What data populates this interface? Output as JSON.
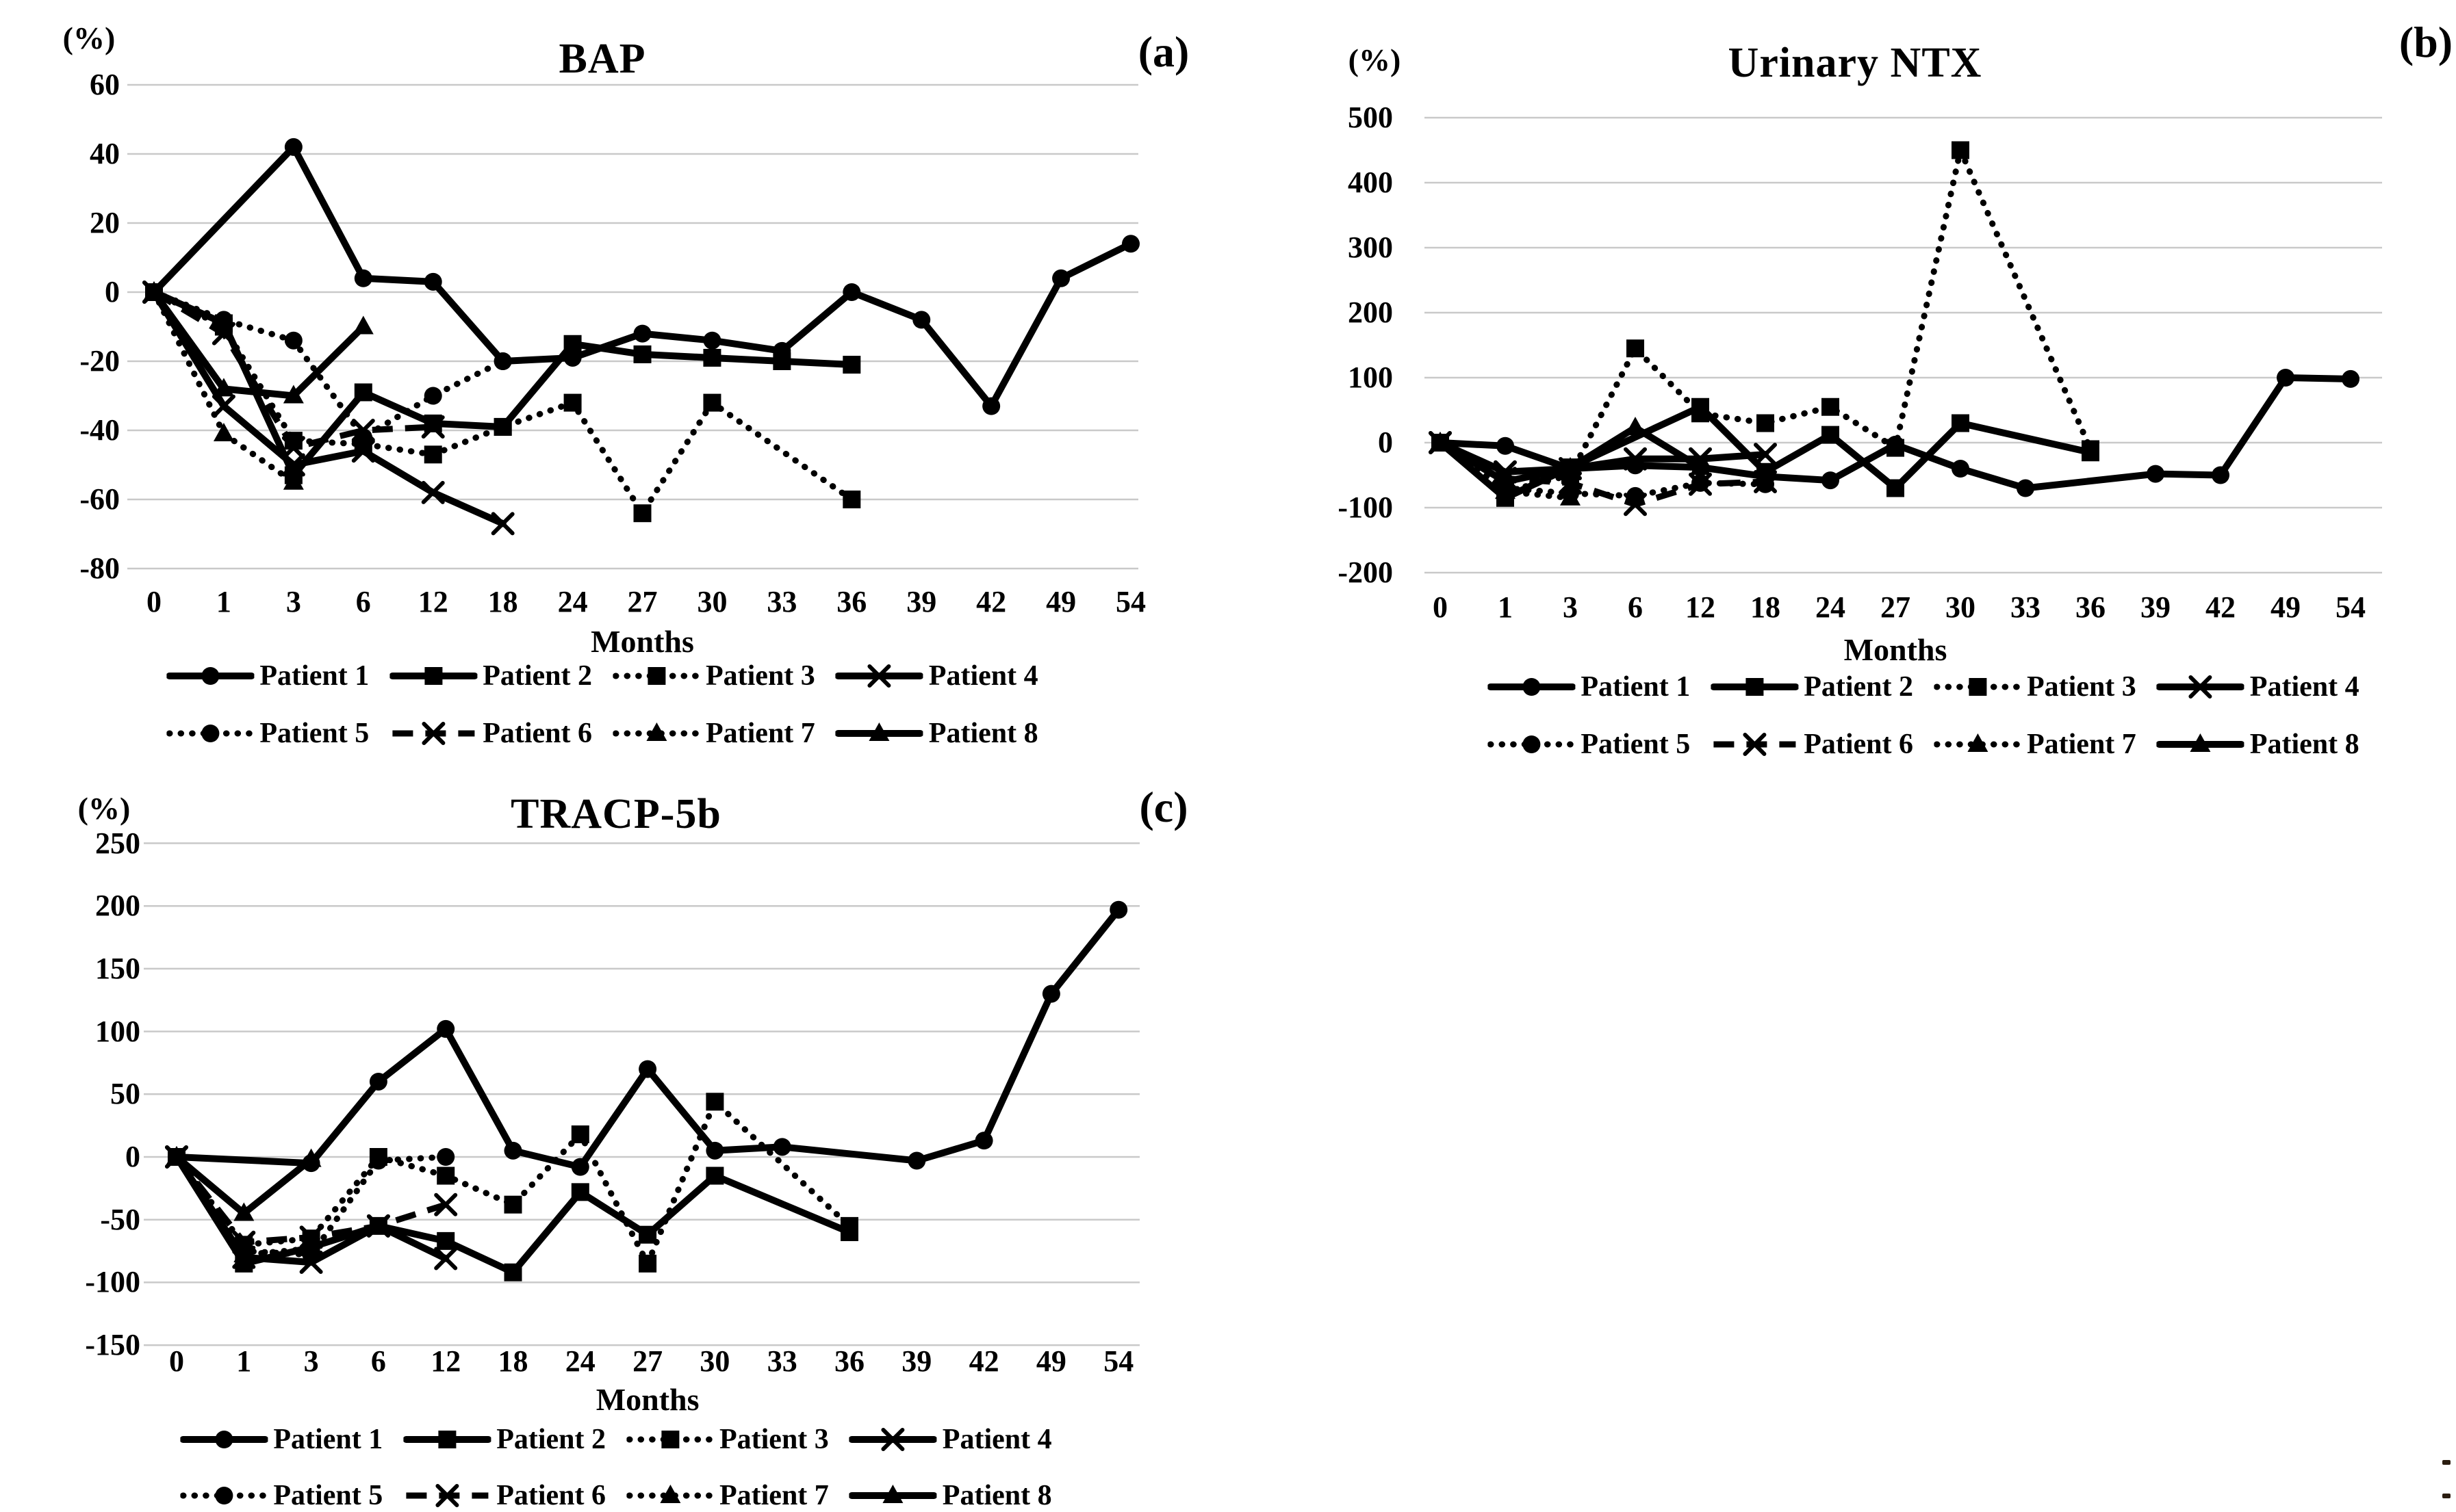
{
  "figure": {
    "background": "#ffffff",
    "axis_color": "#000000",
    "gridline_color": "#c9c9c9"
  },
  "chart_data": [
    {
      "type": "line",
      "panel": "(a)",
      "title": "BAP",
      "unit": "(%)",
      "xlabel": "Months",
      "grid": "horizontal",
      "legend_position": "bottom",
      "ylim": [
        -80,
        60
      ],
      "yticks": [
        60,
        40,
        20,
        0,
        -20,
        -40,
        -60,
        -80
      ],
      "categories": [
        0,
        1,
        3,
        6,
        12,
        18,
        24,
        27,
        30,
        33,
        36,
        39,
        42,
        49,
        54
      ],
      "series": [
        {
          "name": "Patient 1",
          "line": "solid",
          "marker": "circle",
          "values": [
            0,
            null,
            42,
            4,
            3,
            -20,
            -19,
            -12,
            -14,
            -17,
            0,
            -8,
            -33,
            4,
            14
          ]
        },
        {
          "name": "Patient 2",
          "line": "solid",
          "marker": "square",
          "values": [
            0,
            -9,
            -53,
            -29,
            -38,
            -39,
            -15,
            -18,
            -19,
            -20,
            -21,
            null,
            null,
            null,
            null
          ]
        },
        {
          "name": "Patient 3",
          "line": "dotted",
          "marker": "square",
          "values": [
            0,
            -10,
            -43,
            -44,
            -47,
            -39,
            -32,
            -64,
            -32,
            null,
            -60,
            null,
            null,
            null,
            null
          ]
        },
        {
          "name": "Patient 4",
          "line": "solid",
          "marker": "x",
          "values": [
            0,
            -33,
            -50,
            -46,
            -58,
            -67,
            null,
            null,
            null,
            null,
            null,
            null,
            null,
            null,
            null
          ]
        },
        {
          "name": "Patient 5",
          "line": "dotted",
          "marker": "circle",
          "values": [
            0,
            -8,
            -14,
            -42,
            -30,
            -20,
            null,
            null,
            null,
            null,
            null,
            null,
            null,
            null,
            null
          ]
        },
        {
          "name": "Patient 6",
          "line": "dashed",
          "marker": "x",
          "values": [
            0,
            -12,
            -45,
            -40,
            -39,
            null,
            null,
            null,
            null,
            null,
            null,
            null,
            null,
            null,
            null
          ]
        },
        {
          "name": "Patient 7",
          "line": "dotted",
          "marker": "triangle",
          "values": [
            0,
            -41,
            -55,
            null,
            null,
            null,
            null,
            null,
            null,
            null,
            null,
            null,
            null,
            null,
            null
          ]
        },
        {
          "name": "Patient 8",
          "line": "solid",
          "marker": "triangle",
          "values": [
            0,
            -28,
            -30,
            -10,
            null,
            null,
            null,
            null,
            null,
            null,
            null,
            null,
            null,
            null,
            null
          ]
        }
      ]
    },
    {
      "type": "line",
      "panel": "(b)",
      "title": "Urinary NTX",
      "unit": "(%)",
      "xlabel": "Months",
      "grid": "horizontal",
      "legend_position": "bottom",
      "ylim": [
        -200,
        500
      ],
      "yticks": [
        500,
        400,
        300,
        200,
        100,
        0,
        -100,
        -200
      ],
      "categories": [
        0,
        1,
        3,
        6,
        12,
        18,
        24,
        27,
        30,
        33,
        36,
        39,
        42,
        49,
        54
      ],
      "series": [
        {
          "name": "Patient 1",
          "line": "solid",
          "marker": "circle",
          "values": [
            0,
            -5,
            -40,
            -35,
            -38,
            -52,
            -58,
            -3,
            -40,
            -70,
            null,
            -48,
            -50,
            100,
            98
          ]
        },
        {
          "name": "Patient 2",
          "line": "solid",
          "marker": "square",
          "values": [
            0,
            -85,
            -38,
            null,
            55,
            -45,
            12,
            -70,
            30,
            null,
            -15,
            null,
            null,
            null,
            null
          ]
        },
        {
          "name": "Patient 3",
          "line": "dotted",
          "marker": "square",
          "values": [
            0,
            -75,
            -50,
            145,
            45,
            30,
            55,
            -8,
            450,
            null,
            -10,
            null,
            null,
            null,
            null
          ]
        },
        {
          "name": "Patient 4",
          "line": "solid",
          "marker": "x",
          "values": [
            0,
            -45,
            -40,
            -25,
            -25,
            -18,
            null,
            null,
            null,
            null,
            null,
            null,
            null,
            null,
            null
          ]
        },
        {
          "name": "Patient 5",
          "line": "dotted",
          "marker": "circle",
          "values": [
            0,
            -70,
            -78,
            -82,
            -62,
            -64,
            null,
            null,
            null,
            null,
            null,
            null,
            null,
            null,
            null
          ]
        },
        {
          "name": "Patient 6",
          "line": "dashed",
          "marker": "x",
          "values": [
            0,
            -55,
            -62,
            -95,
            -64,
            -60,
            null,
            null,
            null,
            null,
            null,
            null,
            null,
            null,
            null
          ]
        },
        {
          "name": "Patient 7",
          "line": "dotted",
          "marker": "triangle",
          "values": [
            0,
            -75,
            -85,
            null,
            null,
            null,
            null,
            null,
            null,
            null,
            null,
            null,
            null,
            null,
            null
          ]
        },
        {
          "name": "Patient 8",
          "line": "solid",
          "marker": "triangle",
          "values": [
            0,
            -60,
            -39,
            23,
            -38,
            null,
            null,
            null,
            null,
            null,
            null,
            null,
            null,
            null,
            null
          ]
        }
      ]
    },
    {
      "type": "line",
      "panel": "(c)",
      "title": "TRACP-5b",
      "unit": "(%)",
      "xlabel": "Months",
      "grid": "horizontal",
      "legend_position": "bottom",
      "ylim": [
        -150,
        250
      ],
      "yticks": [
        250,
        200,
        150,
        100,
        50,
        0,
        -50,
        -100,
        -150
      ],
      "categories": [
        0,
        1,
        3,
        6,
        12,
        18,
        24,
        27,
        30,
        33,
        36,
        39,
        42,
        49,
        54
      ],
      "series": [
        {
          "name": "Patient 1",
          "line": "solid",
          "marker": "circle",
          "values": [
            0,
            null,
            -5,
            60,
            102,
            5,
            -8,
            70,
            5,
            8,
            null,
            -3,
            13,
            130,
            197
          ]
        },
        {
          "name": "Patient 2",
          "line": "solid",
          "marker": "square",
          "values": [
            0,
            -85,
            -72,
            -55,
            -67,
            -92,
            -28,
            -62,
            -15,
            null,
            -60,
            null,
            null,
            null,
            null
          ]
        },
        {
          "name": "Patient 3",
          "line": "dotted",
          "marker": "square",
          "values": [
            0,
            -70,
            -65,
            0,
            -15,
            -38,
            18,
            -85,
            44,
            null,
            -55,
            null,
            null,
            null,
            null
          ]
        },
        {
          "name": "Patient 4",
          "line": "solid",
          "marker": "x",
          "values": [
            0,
            -80,
            -84,
            -55,
            -81,
            null,
            null,
            null,
            null,
            null,
            null,
            null,
            null,
            null,
            null
          ]
        },
        {
          "name": "Patient 5",
          "line": "dotted",
          "marker": "circle",
          "values": [
            0,
            -75,
            -78,
            -3,
            0,
            null,
            null,
            null,
            null,
            null,
            null,
            null,
            null,
            null,
            null
          ]
        },
        {
          "name": "Patient 6",
          "line": "dashed",
          "marker": "x",
          "values": [
            0,
            -68,
            -64,
            -55,
            -38,
            null,
            null,
            null,
            null,
            null,
            null,
            null,
            null,
            null,
            null
          ]
        },
        {
          "name": "Patient 7",
          "line": "dotted",
          "marker": "triangle",
          "values": [
            0,
            -78,
            -73,
            null,
            null,
            null,
            null,
            null,
            null,
            null,
            null,
            null,
            null,
            null,
            null
          ]
        },
        {
          "name": "Patient 8",
          "line": "solid",
          "marker": "triangle",
          "values": [
            0,
            -45,
            -2,
            null,
            null,
            null,
            null,
            null,
            null,
            null,
            null,
            null,
            null,
            null,
            null
          ]
        }
      ]
    }
  ]
}
